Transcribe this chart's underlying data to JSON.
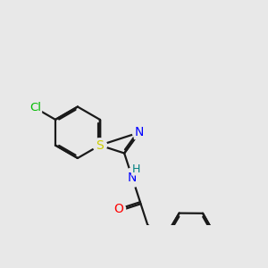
{
  "bg_color": "#e8e8e8",
  "bond_color": "#1a1a1a",
  "bond_width": 1.6,
  "dbo": 0.055,
  "atom_colors": {
    "S": "#cccc00",
    "N": "#0000ff",
    "O": "#ff0000",
    "Cl": "#00bb00",
    "H": "#008080",
    "C": "#1a1a1a"
  },
  "font_size": 9.5
}
